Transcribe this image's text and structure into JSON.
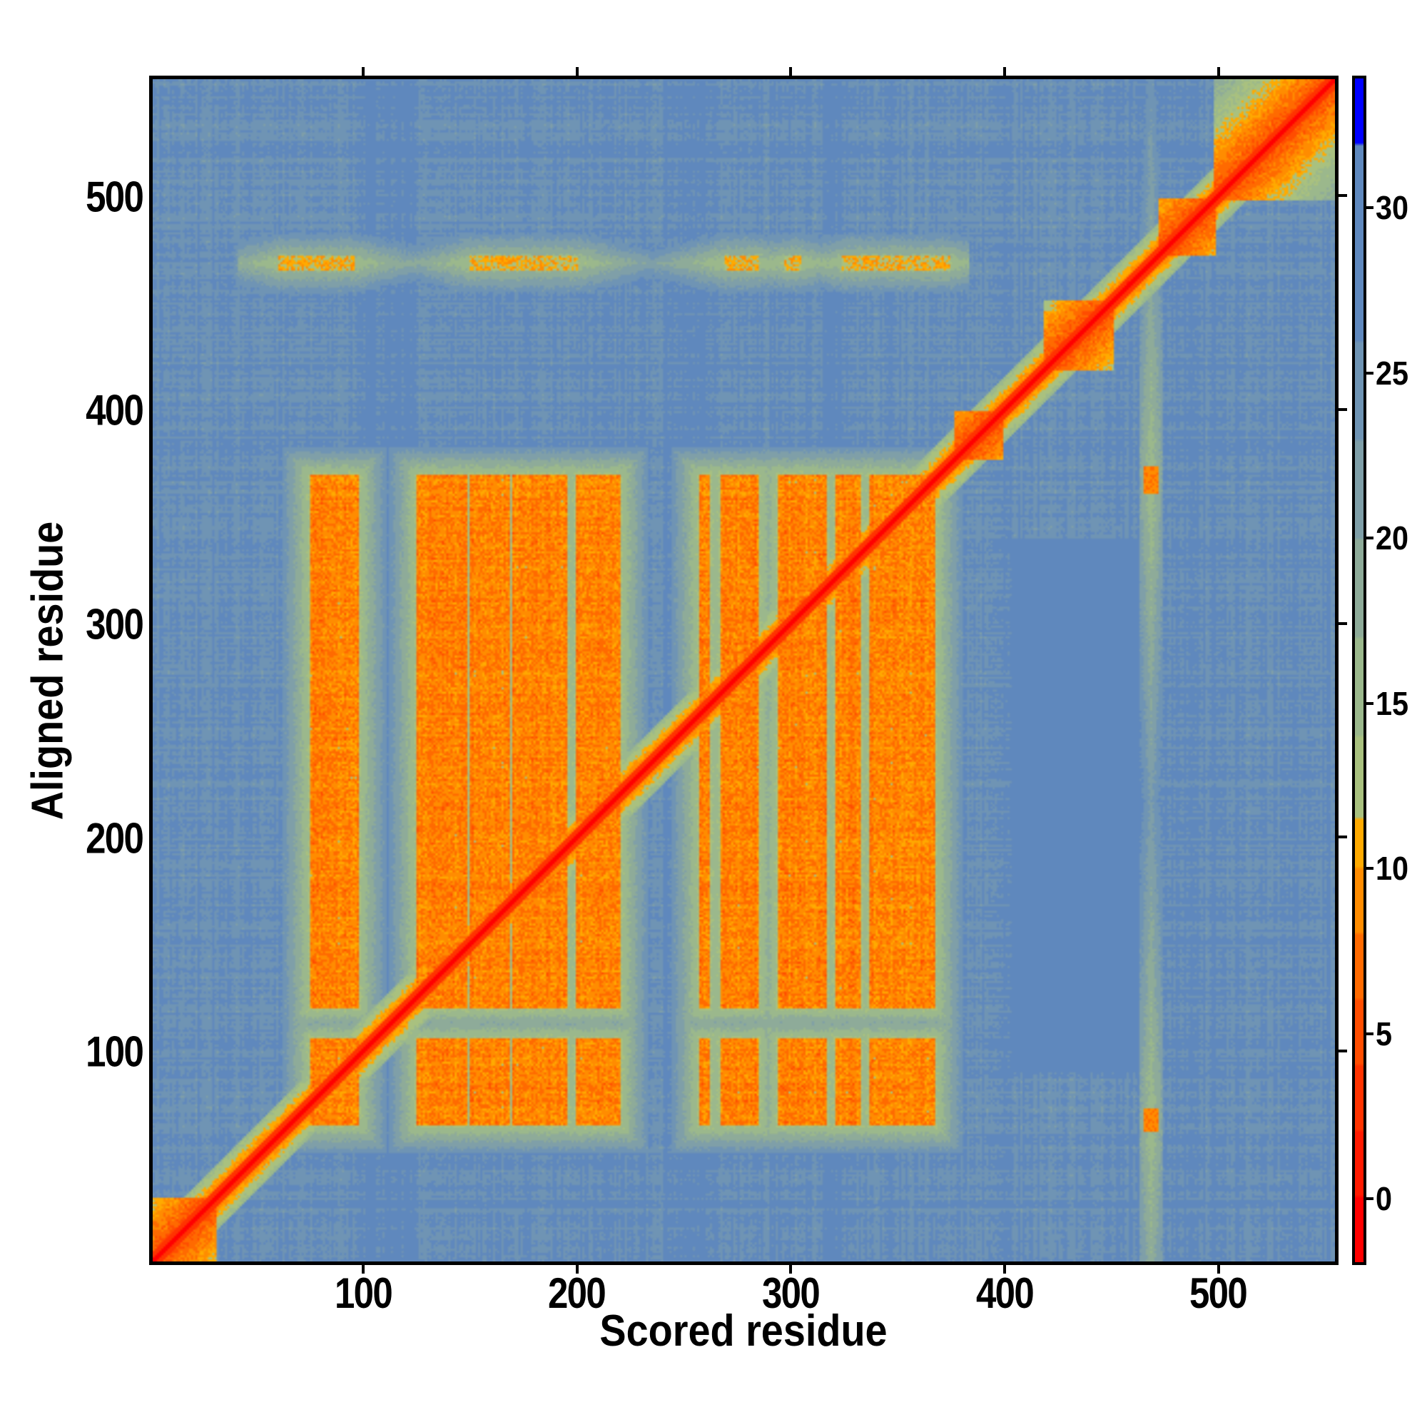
{
  "chart_data": {
    "type": "heatmap",
    "title": "",
    "xlabel": "Scored residue",
    "ylabel": "Aligned residue",
    "xlim": [
      0,
      556
    ],
    "ylim": [
      0,
      556
    ],
    "n_residues": 556,
    "xticks": [
      100,
      200,
      300,
      400,
      500
    ],
    "yticks": [
      100,
      200,
      300,
      400,
      500
    ],
    "xtick_labels": [
      "100",
      "200",
      "300",
      "400",
      "500"
    ],
    "ytick_labels": [
      "100",
      "200",
      "300",
      "400",
      "500"
    ],
    "colorbar": {
      "range": [
        -2,
        34
      ],
      "ticks": [
        0,
        5,
        10,
        15,
        20,
        25,
        30
      ],
      "tick_labels": [
        "0",
        "5",
        "10",
        "15",
        "20",
        "25",
        "30"
      ],
      "bands": [
        {
          "max": 0,
          "color": "#ff0000"
        },
        {
          "max": 2,
          "color": "#ff1a00"
        },
        {
          "max": 4,
          "color": "#ff3300"
        },
        {
          "max": 6,
          "color": "#ff4d00"
        },
        {
          "max": 8,
          "color": "#ff6a00"
        },
        {
          "max": 10,
          "color": "#ff8c00"
        },
        {
          "max": 11.5,
          "color": "#ffaa00"
        },
        {
          "max": 14,
          "color": "#a9c17f"
        },
        {
          "max": 17,
          "color": "#9bb88c"
        },
        {
          "max": 20,
          "color": "#8eab99"
        },
        {
          "max": 23,
          "color": "#7f9fa8"
        },
        {
          "max": 26,
          "color": "#6f94b4"
        },
        {
          "max": 32,
          "color": "#5f88bd"
        },
        {
          "max": 34,
          "color": "#0000ff"
        }
      ]
    },
    "background_value": 26,
    "diagonal_value": 1,
    "diagonal_domains": [
      [
        1,
        30
      ],
      [
        378,
        400
      ],
      [
        420,
        452
      ],
      [
        474,
        500
      ],
      [
        500,
        556
      ]
    ],
    "block_columns": [
      [
        75,
        97
      ],
      [
        125,
        148
      ],
      [
        150,
        168
      ],
      [
        170,
        195
      ],
      [
        200,
        220
      ],
      [
        258,
        262
      ],
      [
        268,
        285
      ],
      [
        295,
        317
      ],
      [
        322,
        333
      ],
      [
        338,
        368
      ]
    ],
    "block_rows": [
      [
        65,
        105
      ],
      [
        120,
        370
      ]
    ],
    "block_value": 5,
    "row_spots": {
      "row": 470,
      "columns": [
        [
          60,
          95
        ],
        [
          150,
          200
        ],
        [
          270,
          285
        ],
        [
          298,
          305
        ],
        [
          325,
          375
        ]
      ],
      "value": 9
    },
    "column_spots": {
      "column": 470,
      "rows": [
        [
          62,
          72
        ],
        [
          362,
          374
        ]
      ],
      "value": 7
    },
    "low_confidence_region": {
      "columns": [
        405,
        465
      ],
      "rows": [
        90,
        340
      ],
      "value": 29
    }
  }
}
